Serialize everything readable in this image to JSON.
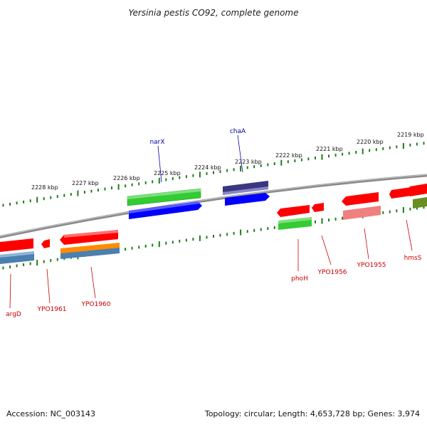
{
  "title": "Yersinia pestis CO92, complete genome",
  "footer": {
    "accession": "Accession: NC_003143",
    "summary": "Topology: circular; Length: 4,653,728 bp; Genes: 3,974"
  },
  "scale": {
    "unit": "kbp",
    "ticks": [
      "2228 kbp",
      "2227 kbp",
      "2226 kbp",
      "2225 kbp",
      "2224 kbp",
      "2223 kbp",
      "2222 kbp",
      "2221 kbp",
      "2220 kbp",
      "2219 kbp"
    ]
  },
  "genes_forward": [
    {
      "name": "narX",
      "color": "#0000aa"
    },
    {
      "name": "chaA",
      "color": "#0000aa"
    }
  ],
  "genes_reverse": [
    {
      "name": "argD",
      "color": "#cc0000"
    },
    {
      "name": "YPO1961",
      "color": "#cc0000"
    },
    {
      "name": "YPO1960",
      "color": "#cc0000"
    },
    {
      "name": "phoH",
      "color": "#cc0000"
    },
    {
      "name": "YPO1956",
      "color": "#cc0000"
    },
    {
      "name": "YPO1955",
      "color": "#cc0000"
    },
    {
      "name": "hmsS",
      "color": "#cc0000"
    }
  ],
  "colors": {
    "backbone": "#808080",
    "ticks": "#1e7d1e",
    "red": "#ff0000",
    "green": "#33cc33",
    "blue": "#0000ff",
    "indigo": "#3a3680",
    "orange": "#ff8c00",
    "steel": "#4a7fb0",
    "pink": "#f08080",
    "olive": "#6b8e23"
  }
}
